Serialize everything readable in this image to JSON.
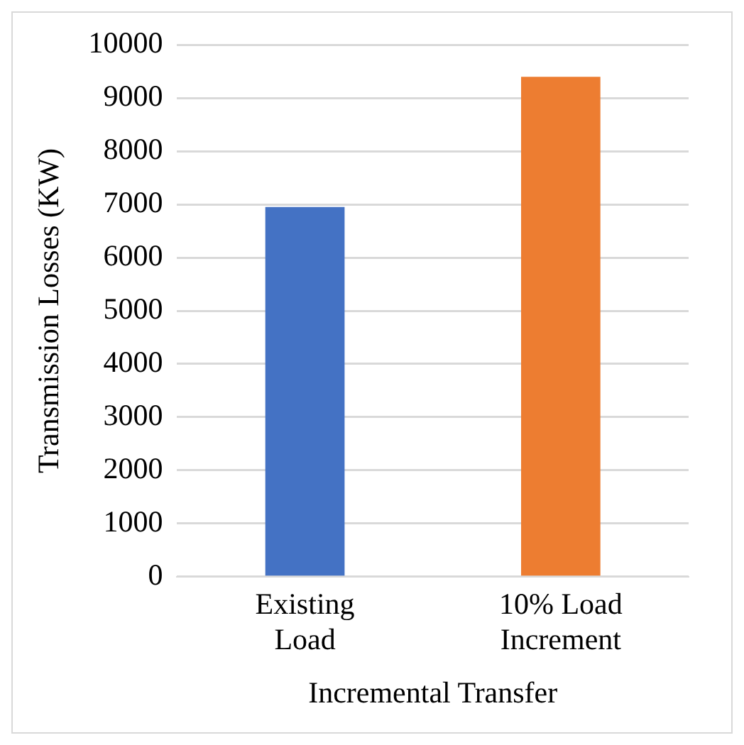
{
  "chart_data": {
    "type": "bar",
    "xlabel": "Incremental Transfer",
    "ylabel": "Transmission Losses (KW)",
    "categories": [
      "Existing Load",
      "10% Load Increment"
    ],
    "colors": [
      "#4472c4",
      "#ed7d31"
    ],
    "values": [
      6950,
      9400
    ],
    "ylim": [
      0,
      10000
    ],
    "yticks": [
      0,
      1000,
      2000,
      3000,
      4000,
      5000,
      6000,
      7000,
      8000,
      9000,
      10000
    ],
    "grid": "y"
  }
}
